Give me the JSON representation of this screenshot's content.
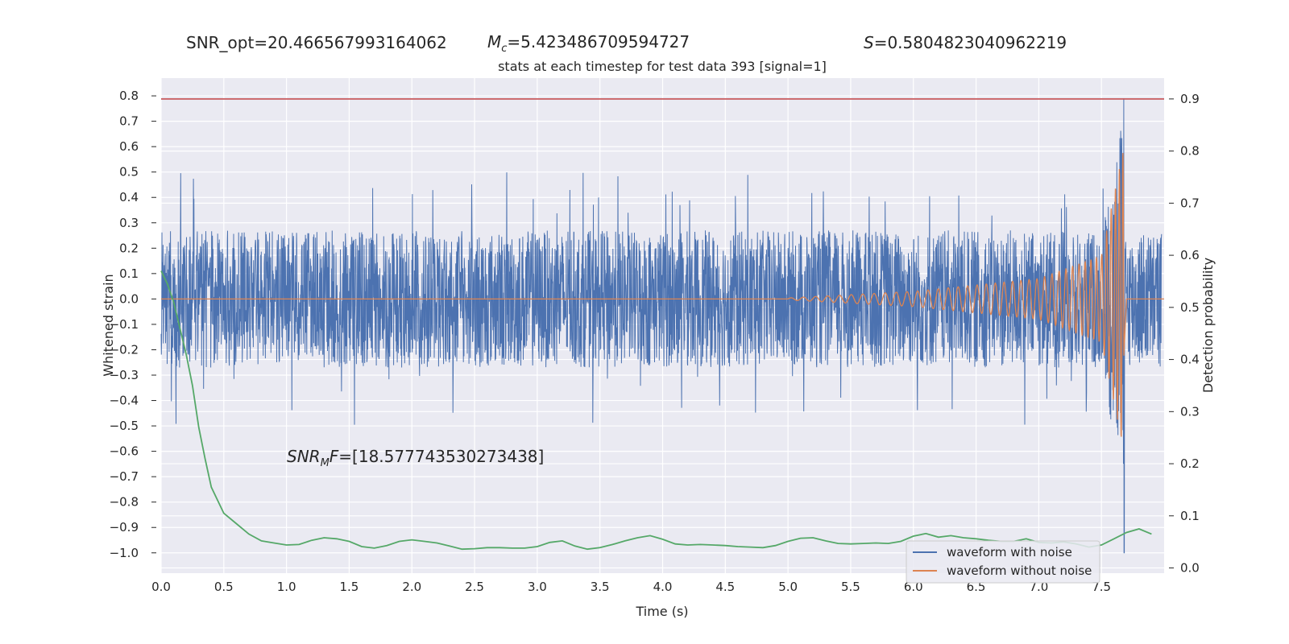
{
  "header": {
    "snr_opt": "SNR_opt=20.466567993164062",
    "mc_symbol": "M",
    "mc_sub": "c",
    "mc_value": "=5.423486709594727",
    "s_symbol": "S",
    "s_value": "=0.5804823040962219"
  },
  "annotation": {
    "snr_main": "SNR",
    "snr_sub": "M",
    "snr_f": "F",
    "snr_value": "=[18.577743530273438]"
  },
  "chart_data": {
    "type": "line",
    "title": "stats at each timestep for test data 393 [signal=1]",
    "xlabel": "Time (s)",
    "ylabel_left": "Whitened strain",
    "ylabel_right": "Detection probability",
    "xlim": [
      0.0,
      8.0
    ],
    "ylim_left": [
      -1.08,
      0.87
    ],
    "ylim_right": [
      -0.01,
      0.94
    ],
    "x_ticks": [
      "0.0",
      "0.5",
      "1.0",
      "1.5",
      "2.0",
      "2.5",
      "3.0",
      "3.5",
      "4.0",
      "4.5",
      "5.0",
      "5.5",
      "6.0",
      "6.5",
      "7.0",
      "7.5"
    ],
    "y_left_ticks": [
      "0.8",
      "0.7",
      "0.6",
      "0.5",
      "0.4",
      "0.3",
      "0.2",
      "0.1",
      "0.0",
      "−0.1",
      "−0.2",
      "−0.3",
      "−0.4",
      "−0.5",
      "−0.6",
      "−0.7",
      "−0.8",
      "−0.9",
      "−1.0"
    ],
    "y_right_ticks": [
      "0.9",
      "0.8",
      "0.7",
      "0.6",
      "0.5",
      "0.4",
      "0.3",
      "0.2",
      "0.1",
      "0.0"
    ],
    "grid": true,
    "legend_position": "lower right",
    "colors": {
      "background": "#eaeaf2",
      "grid": "#ffffff",
      "noisy": "#4c72b0",
      "clean": "#dd8452",
      "probability": "#55a868",
      "threshold": "#c44e52"
    },
    "threshold": {
      "axis": "right",
      "value": 0.9
    },
    "series": [
      {
        "name": "waveform with noise",
        "axis": "left",
        "description": "whitened noisy strain, roughly ±0.27 band with spikes to ±0.5; merger peak near t=7.68",
        "envelope": {
          "t": [
            0.0,
            7.5,
            7.68
          ],
          "amp": [
            0.27,
            0.27,
            0.79
          ],
          "min_at_peak": -1.0
        }
      },
      {
        "name": "waveform without noise",
        "axis": "left",
        "description": "chirp signal starting near t=5.0, growing to ~0.6 at t=7.68",
        "envelope": {
          "t": [
            5.0,
            6.0,
            7.0,
            7.5,
            7.68
          ],
          "amp": [
            0.004,
            0.03,
            0.08,
            0.17,
            0.6
          ]
        }
      },
      {
        "axis": "right",
        "x": [
          0.0,
          0.05,
          0.1,
          0.15,
          0.2,
          0.25,
          0.3,
          0.35,
          0.4,
          0.5,
          0.6,
          0.7,
          0.8,
          0.9,
          1.0,
          1.1,
          1.2,
          1.3,
          1.4,
          1.5,
          1.6,
          1.7,
          1.8,
          1.9,
          2.0,
          2.1,
          2.2,
          2.3,
          2.4,
          2.5,
          2.6,
          2.7,
          2.8,
          2.9,
          3.0,
          3.1,
          3.2,
          3.3,
          3.4,
          3.5,
          3.6,
          3.7,
          3.8,
          3.9,
          4.0,
          4.1,
          4.2,
          4.3,
          4.4,
          4.5,
          4.6,
          4.7,
          4.8,
          4.9,
          5.0,
          5.1,
          5.2,
          5.3,
          5.4,
          5.5,
          5.6,
          5.7,
          5.8,
          5.9,
          6.0,
          6.1,
          6.2,
          6.3,
          6.4,
          6.5,
          6.6,
          6.7,
          6.8,
          6.9,
          7.0,
          7.1,
          7.2,
          7.3,
          7.4,
          7.5,
          7.6,
          7.7,
          7.8,
          7.9
        ],
        "values": [
          0.57,
          0.545,
          0.51,
          0.46,
          0.41,
          0.35,
          0.27,
          0.21,
          0.155,
          0.105,
          0.085,
          0.065,
          0.052,
          0.048,
          0.044,
          0.045,
          0.053,
          0.058,
          0.056,
          0.051,
          0.041,
          0.038,
          0.043,
          0.051,
          0.054,
          0.051,
          0.048,
          0.042,
          0.036,
          0.037,
          0.039,
          0.039,
          0.038,
          0.038,
          0.041,
          0.049,
          0.052,
          0.042,
          0.036,
          0.039,
          0.045,
          0.052,
          0.058,
          0.062,
          0.055,
          0.046,
          0.044,
          0.045,
          0.044,
          0.043,
          0.041,
          0.04,
          0.039,
          0.043,
          0.051,
          0.057,
          0.058,
          0.052,
          0.047,
          0.046,
          0.047,
          0.048,
          0.047,
          0.051,
          0.061,
          0.066,
          0.059,
          0.062,
          0.058,
          0.056,
          0.053,
          0.051,
          0.051,
          0.056,
          0.049,
          0.048,
          0.05,
          0.046,
          0.04,
          0.044,
          0.056,
          0.068,
          0.075,
          0.065
        ]
      }
    ]
  }
}
